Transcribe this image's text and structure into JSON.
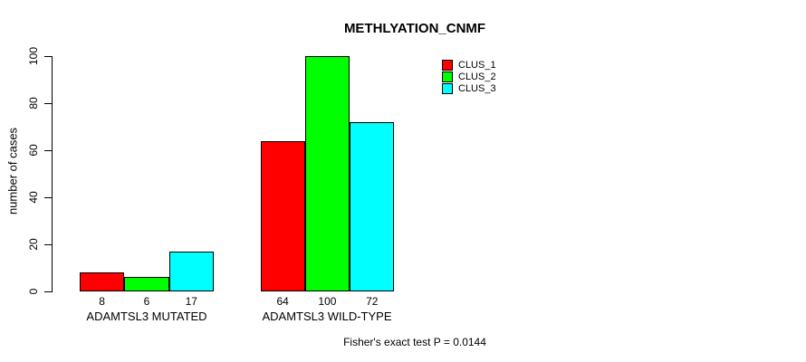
{
  "chart_data": {
    "type": "bar",
    "title": "METHLYATION_CNMF",
    "ylabel": "number of cases",
    "xlabel": "",
    "ylim": [
      0,
      100
    ],
    "yticks": [
      0,
      20,
      40,
      60,
      80,
      100
    ],
    "grid": "off",
    "legend_position": "top-right",
    "categories": [
      "ADAMTSL3 MUTATED",
      "ADAMTSL3 WILD-TYPE"
    ],
    "series": [
      {
        "name": "CLUS_1",
        "color": "#ff0000",
        "values": [
          8,
          64
        ]
      },
      {
        "name": "CLUS_2",
        "color": "#00ff00",
        "values": [
          6,
          100
        ]
      },
      {
        "name": "CLUS_3",
        "color": "#00ffff",
        "values": [
          17,
          72
        ]
      }
    ],
    "bar_value_labels": [
      [
        "8",
        "6",
        "17"
      ],
      [
        "64",
        "100",
        "72"
      ]
    ],
    "annotation": "Fisher's exact test P = 0.0144"
  }
}
